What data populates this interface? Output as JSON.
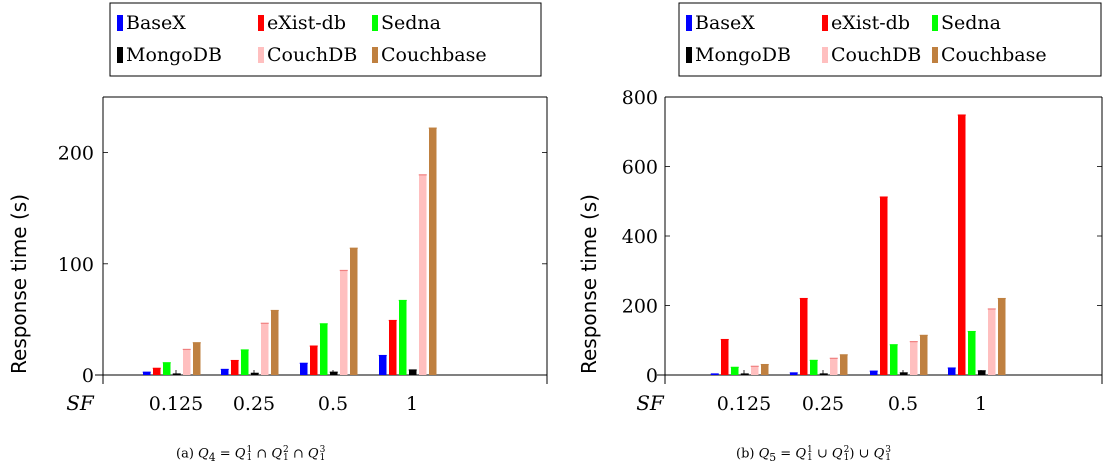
{
  "x_axis_prefix": "SF",
  "captions": [
    {
      "tag": "(a)",
      "q": "Q",
      "qsub": "4",
      "parts": [
        {
          "t": " = "
        },
        {
          "v": "Q",
          "sup": "1",
          "sub": "1"
        },
        {
          "t": " ∩ "
        },
        {
          "v": "Q",
          "sup": "2",
          "sub": "1"
        },
        {
          "t": " ∩ "
        },
        {
          "v": "Q",
          "sup": "3",
          "sub": "1"
        }
      ]
    },
    {
      "tag": "(b)",
      "q": "Q",
      "qsub": "5",
      "parts": [
        {
          "t": " = "
        },
        {
          "v": "Q",
          "sup": "1",
          "sub": "1"
        },
        {
          "t": " ∪ "
        },
        {
          "v": "Q",
          "sup": "2",
          "sub": "1"
        },
        {
          "t": ") ∪ "
        },
        {
          "v": "Q",
          "sup": "3",
          "sub": "1"
        }
      ]
    }
  ],
  "chart_data": [
    {
      "type": "bar",
      "categories": [
        "0.125",
        "0.25",
        "0.5",
        "1"
      ],
      "ylabel": "Response time (s)",
      "ylim": [
        0,
        250
      ],
      "yticks": [
        0,
        100,
        200
      ],
      "legend": "top, outside",
      "series": [
        {
          "name": "BaseX",
          "color": "#0000ff",
          "values": [
            2.5,
            5,
            10.5,
            17.5
          ]
        },
        {
          "name": "eXist-db",
          "color": "#ff0000",
          "values": [
            6,
            13,
            26,
            49
          ]
        },
        {
          "name": "Sedna",
          "color": "#00ff00",
          "values": [
            11,
            22.5,
            46,
            67
          ]
        },
        {
          "name": "MongoDB",
          "color": "#000000",
          "values": [
            0.8,
            1.5,
            2.5,
            4.5
          ]
        },
        {
          "name": "CouchDB",
          "color": "#ffbfbf",
          "values": [
            23,
            46.5,
            94,
            180
          ]
        },
        {
          "name": "Couchbase",
          "color": "#bf8040",
          "values": [
            29,
            58,
            114,
            222
          ]
        }
      ]
    },
    {
      "type": "bar",
      "categories": [
        "0.125",
        "0.25",
        "0.5",
        "1"
      ],
      "ylabel": "Response time (s)",
      "ylim": [
        0,
        800
      ],
      "yticks": [
        0,
        200,
        400,
        600,
        800
      ],
      "legend": "top, outside",
      "series": [
        {
          "name": "BaseX",
          "color": "#0000ff",
          "values": [
            3,
            6,
            11,
            20
          ]
        },
        {
          "name": "eXist-db",
          "color": "#ff0000",
          "values": [
            102,
            220,
            512,
            748
          ]
        },
        {
          "name": "Sedna",
          "color": "#00ff00",
          "values": [
            22,
            42,
            87,
            125
          ]
        },
        {
          "name": "MongoDB",
          "color": "#000000",
          "values": [
            1.5,
            3,
            6,
            12
          ]
        },
        {
          "name": "CouchDB",
          "color": "#ffbfbf",
          "values": [
            25,
            48,
            96,
            190
          ]
        },
        {
          "name": "Couchbase",
          "color": "#bf8040",
          "values": [
            30,
            58,
            114,
            220
          ]
        }
      ]
    }
  ]
}
